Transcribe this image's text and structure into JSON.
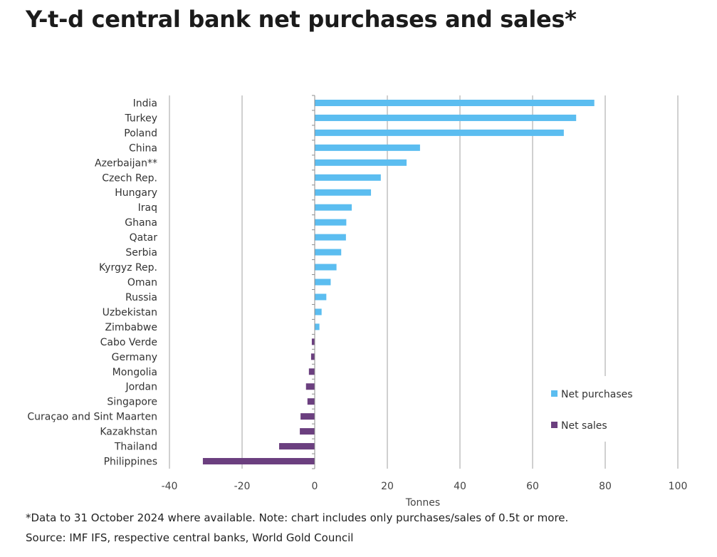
{
  "title": "Y-t-d central bank net purchases and sales*",
  "footnote": "*Data to 31 October 2024 where available. Note: chart includes only purchases/sales of 0.5t or more.",
  "source": "Source: IMF IFS, respective central banks, World Gold Council",
  "colors": {
    "purchases": "#5bbdf0",
    "sales": "#6b3f7f",
    "grid": "#a0a0a0"
  },
  "chart_data": {
    "type": "bar",
    "orientation": "horizontal",
    "categories": [
      "India",
      "Turkey",
      "Poland",
      "China",
      "Azerbaijan**",
      "Czech Rep.",
      "Hungary",
      "Iraq",
      "Ghana",
      "Qatar",
      "Serbia",
      "Kyrgyz Rep.",
      "Oman",
      "Russia",
      "Uzbekistan",
      "Zimbabwe",
      "Cabo Verde",
      "Germany",
      "Mongolia",
      "Jordan",
      "Singapore",
      "Curaçao and Sint Maarten",
      "Kazakhstan",
      "Thailand",
      "Philippines"
    ],
    "values": [
      77.0,
      72.0,
      68.6,
      29.0,
      25.3,
      18.2,
      15.5,
      10.2,
      8.7,
      8.6,
      7.3,
      6.0,
      4.4,
      3.2,
      1.9,
      1.3,
      -0.8,
      -1.0,
      -1.6,
      -2.4,
      -2.0,
      -3.9,
      -4.1,
      -9.8,
      -30.8
    ],
    "series": [
      {
        "name": "Net purchases"
      },
      {
        "name": "Net sales"
      }
    ],
    "xlabel": "Tonnes",
    "xlim": [
      -40,
      100
    ],
    "xticks": [
      -40,
      -20,
      0,
      20,
      40,
      60,
      80,
      100
    ],
    "grid": true,
    "legend_position": "bottom-right"
  }
}
